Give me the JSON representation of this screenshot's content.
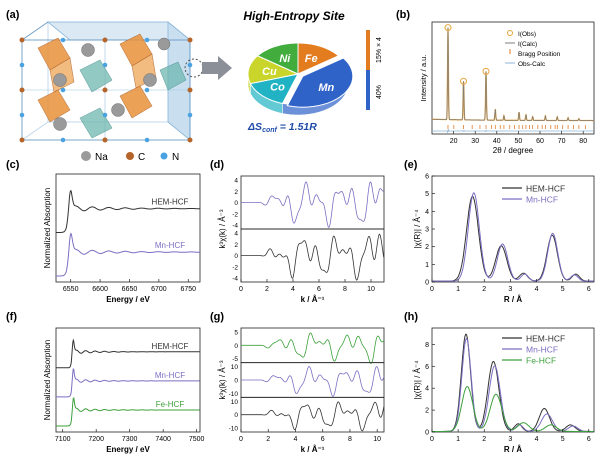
{
  "panel_labels": [
    "(a)",
    "(b)",
    "(c)",
    "(d)",
    "(e)",
    "(f)",
    "(g)",
    "(h)"
  ],
  "colors": {
    "mn": "#7b6fc2",
    "hem": "#333333",
    "fe_line": "#3ca03c",
    "obs_marker": "#e8a43c",
    "calc_line": "#7d7d7d",
    "obs_calc": "#8fb5d8",
    "bragg": "#e07a28",
    "pie_fe": "#e27c1e",
    "pie_mn": "#2f63c8",
    "pie_co": "#21b3c4",
    "pie_cu": "#c9d52a",
    "pie_ni": "#42ad3c",
    "bar_orange": "#e27c1e",
    "bar_blue": "#2f63c8"
  },
  "panel_a": {
    "legend": [
      {
        "symbol": "Na",
        "color": "#9a9a9a"
      },
      {
        "symbol": "C",
        "color": "#b5652a"
      },
      {
        "symbol": "N",
        "color": "#4aa3e0"
      }
    ],
    "site_title": "High-Entropy Site",
    "entropy_label": "ΔSconf = 1.51R",
    "entropy_main": "ΔS",
    "entropy_sub": "conf",
    "entropy_tail": " = 1.51R",
    "bar_labels": [
      "15% × 4",
      "40%"
    ],
    "pie": {
      "type": "pie",
      "slices": [
        {
          "label": "Fe",
          "value": 15
        },
        {
          "label": "Mn",
          "value": 40
        },
        {
          "label": "Co",
          "value": 15
        },
        {
          "label": "Cu",
          "value": 15
        },
        {
          "label": "Ni",
          "value": 15
        }
      ]
    }
  },
  "chart_data": [
    {
      "id": "b",
      "type": "line",
      "xlabel": "2θ / degree",
      "ylabel": "Intensity / a.u.",
      "xlim": [
        10,
        85
      ],
      "xticks": [
        20,
        30,
        40,
        50,
        60,
        70,
        80
      ],
      "legend": [
        "I(Obs)",
        "I(Calc)",
        "Bragg Position",
        "Obs-Calc"
      ],
      "peaks": [
        {
          "x": 17.4,
          "h": 1.0
        },
        {
          "x": 24.6,
          "h": 0.42
        },
        {
          "x": 35.0,
          "h": 0.53
        },
        {
          "x": 39.3,
          "h": 0.12
        },
        {
          "x": 43.3,
          "h": 0.05
        },
        {
          "x": 50.3,
          "h": 0.09
        },
        {
          "x": 53.5,
          "h": 0.06
        },
        {
          "x": 56.6,
          "h": 0.04
        },
        {
          "x": 62.5,
          "h": 0.05
        },
        {
          "x": 68.0,
          "h": 0.04
        },
        {
          "x": 73.0,
          "h": 0.03
        },
        {
          "x": 78.0,
          "h": 0.02
        }
      ],
      "bragg_positions": [
        17.4,
        20.1,
        24.6,
        28.6,
        32.2,
        35.0,
        37.6,
        39.3,
        41.6,
        43.3,
        46.0,
        48.2,
        50.3,
        52.0,
        53.5,
        55.1,
        56.6,
        59.0,
        61.0,
        62.5,
        65.0,
        67.0,
        68.0,
        70.5,
        73.0,
        75.5,
        78.0,
        81.0
      ]
    },
    {
      "id": "c",
      "type": "line",
      "xlabel": "Energy / eV",
      "ylabel": "Normalized Absorption",
      "xlim": [
        6525,
        6770
      ],
      "xticks": [
        6550,
        6600,
        6650,
        6700,
        6750
      ],
      "edge": 6546,
      "series": [
        {
          "name": "Mn-HCF",
          "offset": 0.55
        },
        {
          "name": "HEM-HCF",
          "offset": 0.0
        }
      ]
    },
    {
      "id": "d",
      "type": "line",
      "xlabel": "k / Å⁻¹",
      "ylabel": "k³χ(k) / Å⁻³",
      "xlim": [
        0,
        11
      ],
      "xticks": [
        0,
        2,
        4,
        6,
        8,
        10
      ],
      "sub_yticks": [
        4,
        2,
        0,
        -2,
        -4
      ],
      "series": [
        {
          "name": "Mn-HCF",
          "seed": 1.3
        },
        {
          "name": "HEM-HCF",
          "seed": 2.1
        }
      ]
    },
    {
      "id": "e",
      "type": "line",
      "xlabel": "R / Å",
      "ylabel": "|χ(R)| / Å⁻⁴",
      "xlim": [
        0,
        6.2
      ],
      "ylim": [
        0,
        6
      ],
      "xticks": [
        0,
        1,
        2,
        3,
        4,
        5,
        6
      ],
      "yticks": [
        0,
        1,
        2,
        3,
        4,
        5,
        6
      ],
      "legend": [
        "HEM-HCF",
        "Mn-HCF"
      ],
      "series": [
        {
          "name": "HEM-HCF",
          "peaks": [
            {
              "r": 1.55,
              "a": 4.8,
              "w": 0.32
            },
            {
              "r": 2.65,
              "a": 2.0,
              "w": 0.3
            },
            {
              "r": 3.5,
              "a": 0.45,
              "w": 0.22
            },
            {
              "r": 4.6,
              "a": 2.6,
              "w": 0.28
            },
            {
              "r": 5.5,
              "a": 0.4,
              "w": 0.2
            }
          ]
        },
        {
          "name": "Mn-HCF",
          "peaks": [
            {
              "r": 1.6,
              "a": 5.0,
              "w": 0.3
            },
            {
              "r": 2.7,
              "a": 2.1,
              "w": 0.28
            },
            {
              "r": 3.55,
              "a": 0.4,
              "w": 0.2
            },
            {
              "r": 4.62,
              "a": 2.7,
              "w": 0.27
            },
            {
              "r": 5.45,
              "a": 0.35,
              "w": 0.2
            }
          ]
        }
      ]
    },
    {
      "id": "f",
      "type": "line",
      "xlabel": "Energy / eV",
      "ylabel": "Normalized Absorption",
      "xlim": [
        7080,
        7510
      ],
      "xticks": [
        7100,
        7200,
        7300,
        7400,
        7500
      ],
      "edge": 7128,
      "series": [
        {
          "name": "Fe-HCF",
          "offset": 1.0
        },
        {
          "name": "Mn-HCF",
          "offset": 0.5
        },
        {
          "name": "HEM-HCF",
          "offset": 0.0
        }
      ]
    },
    {
      "id": "g",
      "type": "line",
      "xlabel": "k / Å⁻¹",
      "ylabel": "k³χ(k) / Å⁻³",
      "xlim": [
        0,
        10.5
      ],
      "xticks": [
        0,
        2,
        4,
        6,
        8,
        10
      ],
      "sub_yticks": [
        [
          5,
          0,
          -5
        ],
        [
          10,
          0,
          -10
        ],
        [
          10,
          0,
          -10
        ]
      ],
      "series": [
        {
          "name": "Fe-HCF",
          "seed": 0.7
        },
        {
          "name": "Mn-HCF",
          "seed": 1.3
        },
        {
          "name": "HEM-HCF",
          "seed": 2.1
        }
      ]
    },
    {
      "id": "h",
      "type": "line",
      "xlabel": "R / Å",
      "ylabel": "|χ(R)| / Å⁻⁴",
      "xlim": [
        0,
        6.2
      ],
      "ylim": [
        0,
        9.5
      ],
      "xticks": [
        0,
        1,
        2,
        3,
        4,
        5,
        6
      ],
      "yticks": [
        0,
        2,
        4,
        6,
        8
      ],
      "legend": [
        "HEM-HCF",
        "Mn-HCF",
        "Fe-HCF"
      ],
      "series": [
        {
          "name": "HEM-HCF",
          "peaks": [
            {
              "r": 1.3,
              "a": 8.9,
              "w": 0.25
            },
            {
              "r": 2.35,
              "a": 6.4,
              "w": 0.3
            },
            {
              "r": 3.3,
              "a": 0.7,
              "w": 0.2
            },
            {
              "r": 4.3,
              "a": 2.1,
              "w": 0.28
            },
            {
              "r": 5.3,
              "a": 0.6,
              "w": 0.25
            }
          ]
        },
        {
          "name": "Mn-HCF",
          "peaks": [
            {
              "r": 1.32,
              "a": 8.5,
              "w": 0.25
            },
            {
              "r": 2.4,
              "a": 6.0,
              "w": 0.3
            },
            {
              "r": 3.35,
              "a": 0.6,
              "w": 0.2
            },
            {
              "r": 4.4,
              "a": 1.6,
              "w": 0.3
            },
            {
              "r": 5.4,
              "a": 0.5,
              "w": 0.25
            }
          ]
        },
        {
          "name": "Fe-HCF",
          "peaks": [
            {
              "r": 1.35,
              "a": 4.1,
              "w": 0.3
            },
            {
              "r": 2.45,
              "a": 3.4,
              "w": 0.32
            },
            {
              "r": 3.5,
              "a": 0.8,
              "w": 0.3
            },
            {
              "r": 4.55,
              "a": 0.6,
              "w": 0.3
            }
          ]
        }
      ]
    }
  ]
}
